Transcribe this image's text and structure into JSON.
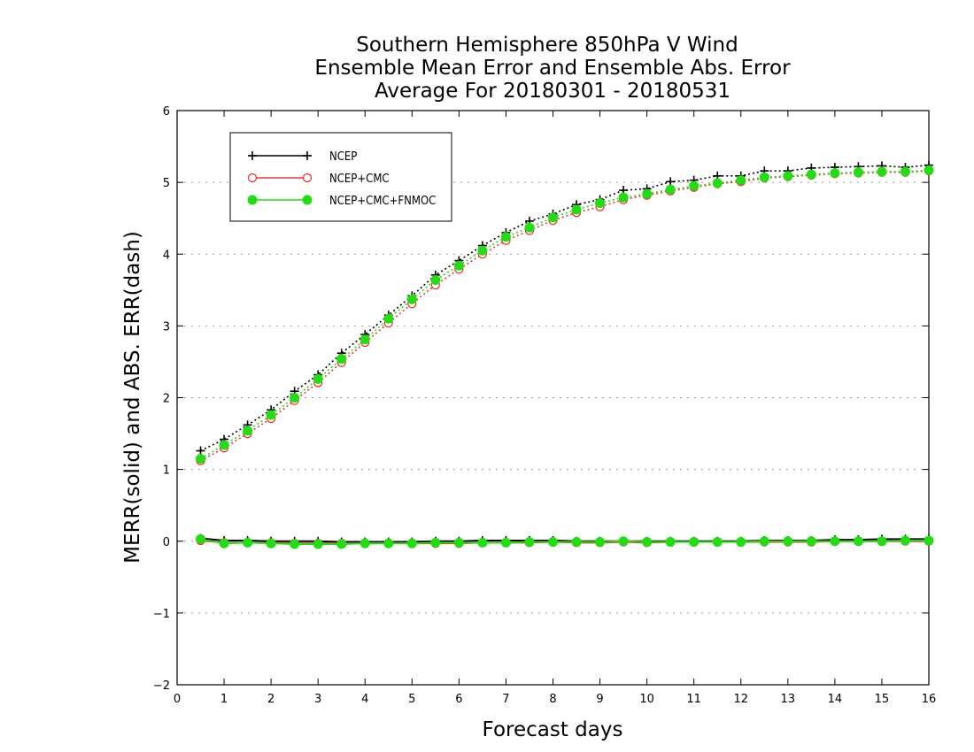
{
  "chart_data": {
    "type": "line",
    "title": [
      "Southern Hemisphere 850hPa V Wind",
      "Ensemble Mean Error and Ensemble Abs. Error",
      "Average For 20180301 - 20180531"
    ],
    "xlabel": "Forecast days",
    "ylabel": "MERR(solid) and ABS. ERR(dash)",
    "xlim": [
      0,
      16
    ],
    "ylim": [
      -2,
      6
    ],
    "xticks": [
      0,
      1,
      2,
      3,
      4,
      5,
      6,
      7,
      8,
      9,
      10,
      11,
      12,
      13,
      14,
      15,
      16
    ],
    "yticks": [
      -2,
      -1,
      0,
      1,
      2,
      3,
      4,
      5,
      6
    ],
    "grid": "horizontal dotted",
    "legend_placement": "top-left",
    "x": [
      0.5,
      1,
      1.5,
      2,
      2.5,
      3,
      3.5,
      4,
      4.5,
      5,
      5.5,
      6,
      6.5,
      7,
      7.5,
      8,
      8.5,
      9,
      9.5,
      10,
      10.5,
      11,
      11.5,
      12,
      12.5,
      13,
      13.5,
      14,
      14.5,
      15,
      15.5,
      16
    ],
    "series": [
      {
        "name": "NCEP",
        "color": "#000000",
        "marker": "plus",
        "merr": [
          0.04,
          0.01,
          0.01,
          0.0,
          0.0,
          0.0,
          -0.01,
          -0.01,
          -0.01,
          -0.01,
          0.0,
          0.0,
          0.01,
          0.01,
          0.01,
          0.01,
          0.0,
          0.0,
          0.0,
          0.0,
          0.0,
          0.0,
          0.0,
          0.0,
          0.01,
          0.01,
          0.01,
          0.02,
          0.02,
          0.03,
          0.03,
          0.03
        ],
        "abs_err": [
          1.26,
          1.42,
          1.62,
          1.83,
          2.09,
          2.32,
          2.62,
          2.88,
          3.15,
          3.42,
          3.71,
          3.91,
          4.12,
          4.3,
          4.46,
          4.56,
          4.69,
          4.76,
          4.89,
          4.91,
          5.01,
          5.03,
          5.09,
          5.09,
          5.16,
          5.16,
          5.2,
          5.21,
          5.22,
          5.23,
          5.21,
          5.24
        ]
      },
      {
        "name": "NCEP+CMC",
        "color": "#ee3333",
        "marker": "open-circle",
        "merr": [
          0.01,
          -0.02,
          -0.02,
          -0.02,
          -0.03,
          -0.03,
          -0.03,
          -0.03,
          -0.03,
          -0.03,
          -0.03,
          -0.03,
          -0.02,
          -0.02,
          -0.02,
          -0.01,
          -0.02,
          -0.02,
          -0.01,
          -0.02,
          -0.01,
          -0.01,
          -0.01,
          -0.01,
          -0.01,
          -0.01,
          -0.01,
          0.0,
          0.0,
          0.0,
          0.0,
          0.0
        ],
        "abs_err": [
          1.12,
          1.3,
          1.5,
          1.71,
          1.96,
          2.21,
          2.49,
          2.77,
          3.04,
          3.31,
          3.57,
          3.79,
          4.0,
          4.19,
          4.33,
          4.47,
          4.58,
          4.66,
          4.76,
          4.82,
          4.88,
          4.93,
          4.98,
          5.01,
          5.06,
          5.08,
          5.1,
          5.12,
          5.13,
          5.14,
          5.14,
          5.16
        ]
      },
      {
        "name": "NCEP+CMC+FNMOC",
        "color": "#22dd11",
        "marker": "filled-circle",
        "merr": [
          0.03,
          -0.03,
          -0.02,
          -0.03,
          -0.04,
          -0.04,
          -0.04,
          -0.03,
          -0.03,
          -0.03,
          -0.02,
          -0.02,
          -0.02,
          -0.02,
          -0.01,
          -0.01,
          -0.01,
          -0.01,
          0.0,
          -0.01,
          -0.01,
          -0.01,
          -0.01,
          -0.01,
          0.0,
          0.0,
          0.0,
          0.0,
          0.0,
          0.0,
          0.01,
          0.01
        ],
        "abs_err": [
          1.15,
          1.34,
          1.54,
          1.76,
          2.0,
          2.26,
          2.54,
          2.81,
          3.1,
          3.37,
          3.64,
          3.84,
          4.05,
          4.24,
          4.37,
          4.51,
          4.62,
          4.71,
          4.79,
          4.84,
          4.9,
          4.95,
          4.99,
          5.03,
          5.07,
          5.09,
          5.11,
          5.13,
          5.14,
          5.15,
          5.15,
          5.17
        ]
      }
    ]
  }
}
